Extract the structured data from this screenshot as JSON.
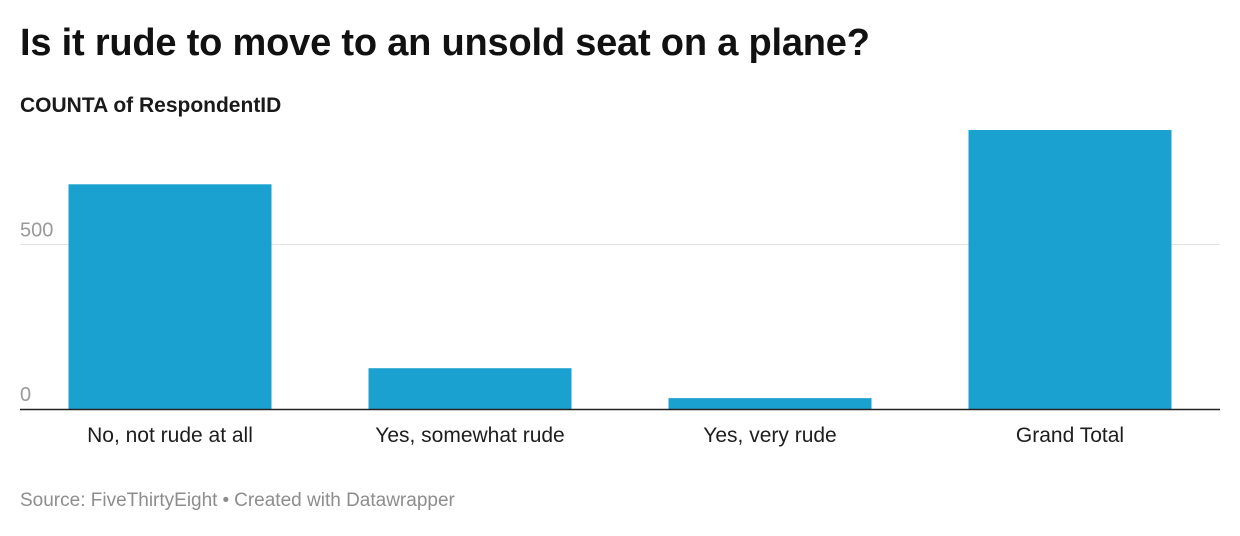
{
  "chart_data": {
    "type": "bar",
    "title": "Is it rude to move to an unsold seat on a plane?",
    "subtitle": "COUNTA of RespondentID",
    "xlabel": "",
    "ylabel": "",
    "categories": [
      "No, not rude at all",
      "Yes, somewhat rude",
      "Yes, very rude",
      "Grand Total"
    ],
    "values": [
      683,
      124,
      33,
      848
    ],
    "ylim": [
      0,
      848
    ],
    "y_ticks": [
      0,
      500
    ],
    "y_tick_labels": [
      "0",
      "500"
    ],
    "grid": true,
    "legend": "none",
    "bar_color": "#1aa1cf"
  },
  "footer": {
    "source": "Source: FiveThirtyEight",
    "separator": "•",
    "credit": "Created with Datawrapper"
  }
}
